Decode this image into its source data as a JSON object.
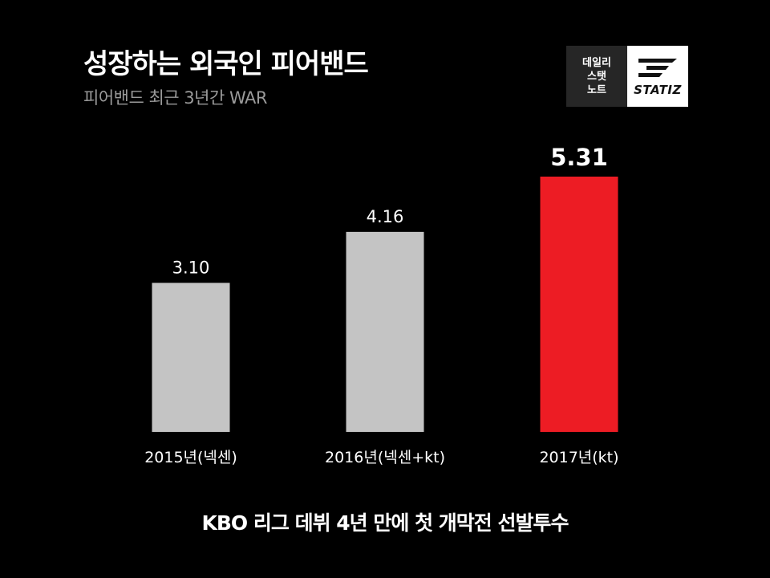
{
  "header": {
    "title": "성장하는 외국인 피어밴드",
    "subtitle": "피어밴드 최근 3년간 WAR"
  },
  "logo": {
    "line1": "데일리",
    "line2": "스탯",
    "line3": "노트",
    "wordmark": "STATIZ"
  },
  "chart_data": {
    "type": "bar",
    "categories": [
      "2015년(넥센)",
      "2016년(넥센+kt)",
      "2017년(kt)"
    ],
    "values": [
      3.1,
      4.16,
      5.31
    ],
    "value_labels": [
      "3.10",
      "4.16",
      "5.31"
    ],
    "ylim": [
      0,
      5.31
    ],
    "colors": [
      "#c4c4c4",
      "#c4c4c4",
      "#ed1c24"
    ],
    "highlight_index": 2,
    "grid": false,
    "legend": "none"
  },
  "footer": {
    "note": "KBO 리그 데뷔 4년 만에 첫 개막전 선발투수"
  }
}
